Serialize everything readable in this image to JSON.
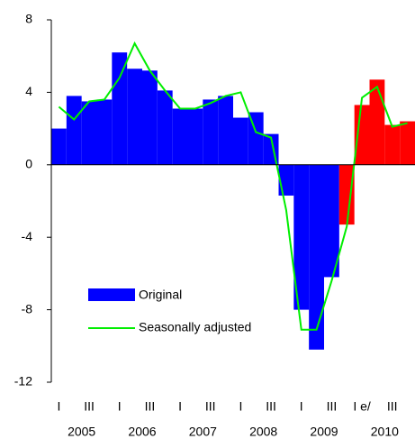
{
  "chart_data": {
    "type": "bar",
    "categories": [
      "I",
      null,
      "III",
      null,
      "I",
      null,
      "III",
      null,
      "I",
      null,
      "III",
      null,
      "I",
      null,
      "III",
      null,
      "I",
      null,
      "III",
      null,
      "I e/",
      null,
      "III",
      null
    ],
    "year_labels": [
      "2005",
      "2006",
      "2007",
      "2008",
      "2009",
      "2010"
    ],
    "series": [
      {
        "name": "Original",
        "type": "bar",
        "color": "#0000ff",
        "point_colors": [
          "#0000ff",
          "#0000ff",
          "#0000ff",
          "#0000ff",
          "#0000ff",
          "#0000ff",
          "#0000ff",
          "#0000ff",
          "#0000ff",
          "#0000ff",
          "#0000ff",
          "#0000ff",
          "#0000ff",
          "#0000ff",
          "#0000ff",
          "#0000ff",
          "#0000ff",
          "#0000ff",
          "#0000ff",
          "#ff0000",
          "#ff0000",
          "#ff0000",
          "#ff0000",
          "#ff0000"
        ],
        "values": [
          2.0,
          3.8,
          3.5,
          3.6,
          6.2,
          5.3,
          5.2,
          4.1,
          3.1,
          3.1,
          3.6,
          3.8,
          2.6,
          2.9,
          1.7,
          -1.7,
          -8.0,
          -10.2,
          -6.2,
          -3.3,
          3.3,
          4.7,
          2.2,
          2.4
        ]
      },
      {
        "name": "Seasonally adjusted",
        "type": "line",
        "color": "#00ee00",
        "values": [
          3.2,
          2.5,
          3.5,
          3.6,
          4.8,
          6.7,
          5.2,
          4.1,
          3.1,
          3.1,
          3.4,
          3.8,
          4.0,
          1.8,
          1.5,
          -2.5,
          -9.1,
          -9.1,
          -6.4,
          -3.4,
          3.7,
          4.3,
          2.1,
          2.3
        ]
      }
    ],
    "ylim": [
      -12,
      8
    ],
    "yticks": [
      -12,
      -8,
      -4,
      0,
      4,
      8
    ]
  }
}
